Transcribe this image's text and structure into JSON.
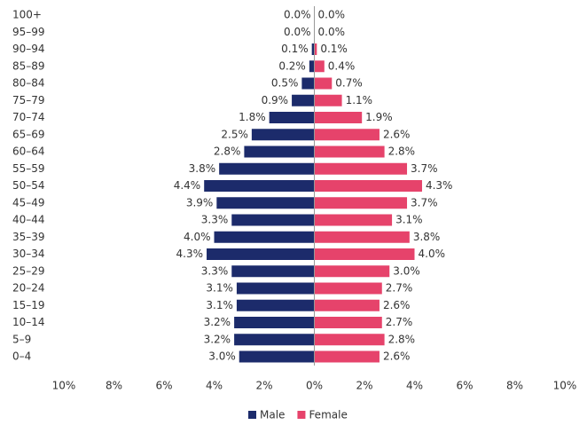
{
  "chart_data": {
    "type": "pyramid",
    "categories": [
      "100+",
      "95–99",
      "90–94",
      "85–89",
      "80–84",
      "75–79",
      "70–74",
      "65–69",
      "60–64",
      "55–59",
      "50–54",
      "45–49",
      "40–44",
      "35–39",
      "30–34",
      "25–29",
      "20–24",
      "15–19",
      "10–14",
      "5–9",
      "0–4"
    ],
    "series": [
      {
        "name": "Male",
        "color": "#1c2b6b",
        "side": "left",
        "values": [
          0.0,
          0.0,
          0.1,
          0.2,
          0.5,
          0.9,
          1.8,
          2.5,
          2.8,
          3.8,
          4.4,
          3.9,
          3.3,
          4.0,
          4.3,
          3.3,
          3.1,
          3.1,
          3.2,
          3.2,
          3.0
        ],
        "value_labels": [
          "0.0%",
          "0.0%",
          "0.1%",
          "0.2%",
          "0.5%",
          "0.9%",
          "1.8%",
          "2.5%",
          "2.8%",
          "3.8%",
          "4.4%",
          "3.9%",
          "3.3%",
          "4.0%",
          "4.3%",
          "3.3%",
          "3.1%",
          "3.1%",
          "3.2%",
          "3.2%",
          "3.0%"
        ]
      },
      {
        "name": "Female",
        "color": "#e6436b",
        "side": "right",
        "values": [
          0.0,
          0.0,
          0.1,
          0.4,
          0.7,
          1.1,
          1.9,
          2.6,
          2.8,
          3.7,
          4.3,
          3.7,
          3.1,
          3.8,
          4.0,
          3.0,
          2.7,
          2.6,
          2.7,
          2.8,
          2.6
        ],
        "value_labels": [
          "0.0%",
          "0.0%",
          "0.1%",
          "0.4%",
          "0.7%",
          "1.1%",
          "1.9%",
          "2.6%",
          "2.8%",
          "3.7%",
          "4.3%",
          "3.7%",
          "3.1%",
          "3.8%",
          "4.0%",
          "3.0%",
          "2.7%",
          "2.6%",
          "2.7%",
          "2.8%",
          "2.6%"
        ]
      }
    ],
    "xlim": [
      -10,
      10
    ],
    "xticks": [
      {
        "value": -10,
        "label": "10%"
      },
      {
        "value": -8,
        "label": "8%"
      },
      {
        "value": -6,
        "label": "6%"
      },
      {
        "value": -4,
        "label": "4%"
      },
      {
        "value": -2,
        "label": "2%"
      },
      {
        "value": 0,
        "label": "0%"
      },
      {
        "value": 2,
        "label": "2%"
      },
      {
        "value": 4,
        "label": "4%"
      },
      {
        "value": 6,
        "label": "6%"
      },
      {
        "value": 8,
        "label": "8%"
      },
      {
        "value": 10,
        "label": "10%"
      }
    ],
    "legend": "bottom"
  }
}
